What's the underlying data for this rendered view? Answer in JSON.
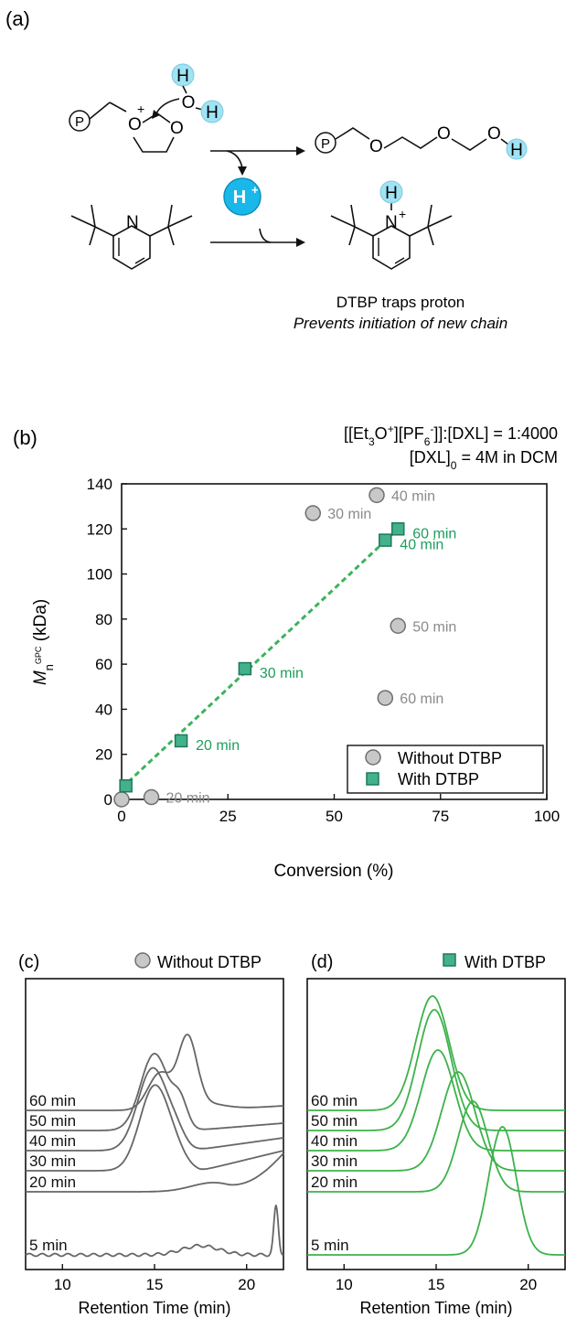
{
  "panel_a": {
    "label": "(a)",
    "polymer_symbol": "P",
    "oxonium_charge": "+",
    "water_h": "H",
    "water_o": "O",
    "proton": "H",
    "proton_charge": "+",
    "pyridine_n": "N",
    "pyridinium_h": "H",
    "product_h": "H",
    "caption_line1": "DTBP traps proton",
    "caption_line2": "Prevents initiation of new chain",
    "colors": {
      "highlight": "#9fe3f5",
      "proton": "#1ab8ea"
    }
  },
  "chart_data": [
    {
      "panel": "(b)",
      "type": "scatter",
      "title_line1_parts": [
        "[[Et",
        "3",
        "O",
        "+",
        "][PF",
        "6",
        "-",
        "]]:[DXL] = 1:4000"
      ],
      "title_line2_parts": [
        "[DXL]",
        "0",
        " = 4M in DCM"
      ],
      "xlabel": "Conversion (%)",
      "ylabel_parts": [
        "M",
        "n",
        "GPC",
        " (kDa)"
      ],
      "xlim": [
        0,
        100
      ],
      "ylim": [
        0,
        140
      ],
      "xticks": [
        "0",
        "25",
        "50",
        "75",
        "100"
      ],
      "yticks": [
        "0",
        "20",
        "40",
        "60",
        "80",
        "100",
        "120",
        "140"
      ],
      "legend_position": "bottom-right",
      "series": [
        {
          "name": "Without DTBP",
          "marker": "circle",
          "color": "#c8c8c8",
          "label_color": "#8a8a8a",
          "points": [
            {
              "x": 0,
              "y": 0,
              "label": ""
            },
            {
              "x": 7,
              "y": 1,
              "label": "20 min"
            },
            {
              "x": 45,
              "y": 127,
              "label": "30 min"
            },
            {
              "x": 60,
              "y": 135,
              "label": "40 min"
            },
            {
              "x": 65,
              "y": 77,
              "label": "50 min"
            },
            {
              "x": 62,
              "y": 45,
              "label": "60 min"
            }
          ]
        },
        {
          "name": "With DTBP",
          "marker": "square",
          "color": "#43b08e",
          "label_color": "#1f9e5c",
          "points": [
            {
              "x": 1,
              "y": 6,
              "label": ""
            },
            {
              "x": 14,
              "y": 26,
              "label": "20 min"
            },
            {
              "x": 29,
              "y": 58,
              "label": "30 min"
            },
            {
              "x": 62,
              "y": 115,
              "label": "40 min"
            },
            {
              "x": 65,
              "y": 120,
              "label": "60 min"
            }
          ],
          "trend_line": {
            "x": [
              0,
              65
            ],
            "y": [
              5,
              120
            ]
          }
        }
      ]
    },
    {
      "panel": "(c)",
      "type": "line",
      "legend": "Without DTBP",
      "marker": "circle",
      "color": "#666666",
      "xlabel": "Retention Time (min)",
      "xlim": [
        8,
        22
      ],
      "xticks": [
        "10",
        "15",
        "20"
      ],
      "trace_labels": [
        "60 min",
        "50 min",
        "40 min",
        "30 min",
        "20 min",
        "5 min"
      ]
    },
    {
      "panel": "(d)",
      "type": "line",
      "legend": "With DTBP",
      "marker": "square",
      "color": "#3cb24a",
      "xlabel": "Retention Time (min)",
      "xlim": [
        8,
        22
      ],
      "xticks": [
        "10",
        "15",
        "20"
      ],
      "trace_labels": [
        "60 min",
        "50 min",
        "40 min",
        "30 min",
        "20 min",
        "5 min"
      ]
    }
  ]
}
